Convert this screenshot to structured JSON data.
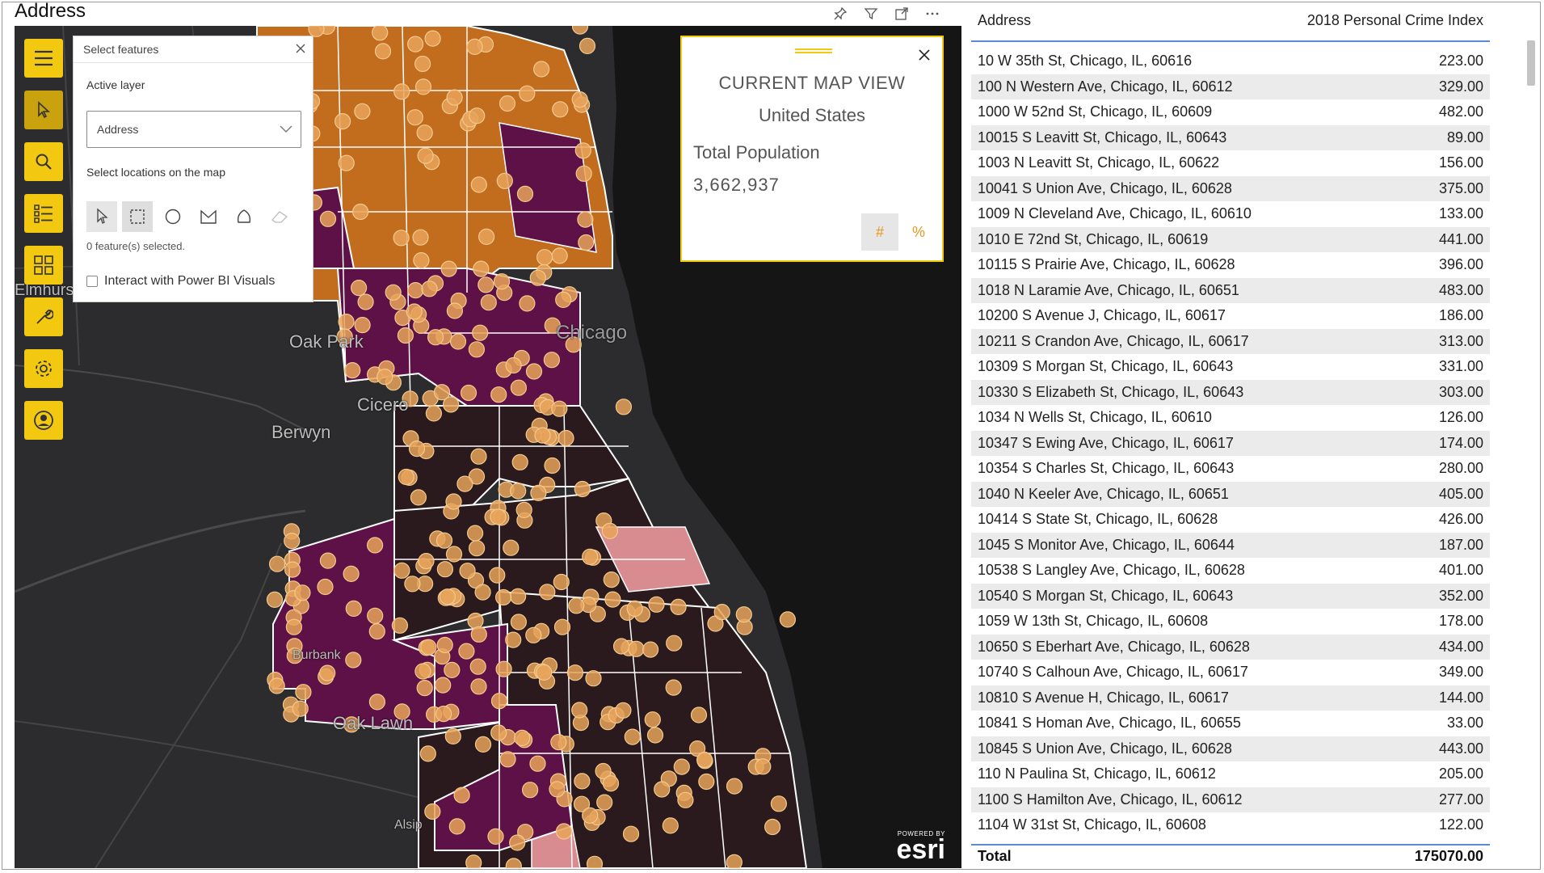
{
  "visual": {
    "title": "Address",
    "header_icons": [
      "pin-icon",
      "filter-icon",
      "focus-mode-icon",
      "more-options-icon"
    ]
  },
  "map": {
    "places": [
      {
        "name": "Oak Park"
      },
      {
        "name": "Chicago"
      },
      {
        "name": "Cicero"
      },
      {
        "name": "Berwyn"
      },
      {
        "name": "Burbank"
      },
      {
        "name": "Oak Lawn"
      },
      {
        "name": "Alsip"
      },
      {
        "name": "Elmhurst"
      }
    ],
    "toolbar": [
      "menu-icon",
      "select-icon",
      "search-icon",
      "layers-list-icon",
      "infographic-icon",
      "tools-icon",
      "settings-icon",
      "account-icon"
    ],
    "select_panel": {
      "title": "Select features",
      "active_layer_label": "Active layer",
      "active_layer_value": "Address",
      "select_label": "Select locations on the map",
      "tools": [
        "pointer-select-icon",
        "rectangle-select-icon",
        "circle-select-icon",
        "polygon-select-icon",
        "lasso-select-icon",
        "eraser-icon"
      ],
      "count_text": "0 feature(s) selected.",
      "interact_label": "Interact with Power BI Visuals",
      "interact_checked": false
    },
    "infocard": {
      "title": "CURRENT MAP VIEW",
      "subtitle": "United States",
      "metric_label": "Total Population",
      "metric_value": "3,662,937",
      "btn_count": "#",
      "btn_percent": "%"
    },
    "attribution": {
      "powered": "POWERED BY",
      "brand": "esri"
    },
    "colors": {
      "orange": "#c7701f",
      "purple": "#5e1146",
      "dark": "#2a1a1d",
      "pink": "#d98c8f",
      "dot": "#e8a35a",
      "accent": "#f2c811"
    }
  },
  "table": {
    "columns": [
      "Address",
      "2018 Personal Crime Index"
    ],
    "rows": [
      [
        "10 W 35th St, Chicago, IL, 60616",
        "223.00"
      ],
      [
        "100 N Western Ave, Chicago, IL, 60612",
        "329.00"
      ],
      [
        "1000 W 52nd St, Chicago, IL, 60609",
        "482.00"
      ],
      [
        "10015 S Leavitt St, Chicago, IL, 60643",
        "89.00"
      ],
      [
        "1003 N Leavitt St, Chicago, IL, 60622",
        "156.00"
      ],
      [
        "10041 S Union Ave, Chicago, IL, 60628",
        "375.00"
      ],
      [
        "1009 N Cleveland Ave, Chicago, IL, 60610",
        "133.00"
      ],
      [
        "1010 E 72nd St, Chicago, IL, 60619",
        "441.00"
      ],
      [
        "10115 S Prairie Ave, Chicago, IL, 60628",
        "396.00"
      ],
      [
        "1018 N Laramie Ave, Chicago, IL, 60651",
        "483.00"
      ],
      [
        "10200 S Avenue J, Chicago, IL, 60617",
        "186.00"
      ],
      [
        "10211 S Crandon Ave, Chicago, IL, 60617",
        "313.00"
      ],
      [
        "10309 S Morgan St, Chicago, IL, 60643",
        "331.00"
      ],
      [
        "10330 S Elizabeth St, Chicago, IL, 60643",
        "303.00"
      ],
      [
        "1034 N Wells St, Chicago, IL, 60610",
        "126.00"
      ],
      [
        "10347 S Ewing Ave, Chicago, IL, 60617",
        "174.00"
      ],
      [
        "10354 S Charles St, Chicago, IL, 60643",
        "280.00"
      ],
      [
        "1040 N Keeler Ave, Chicago, IL, 60651",
        "405.00"
      ],
      [
        "10414 S State St, Chicago, IL, 60628",
        "426.00"
      ],
      [
        "1045 S Monitor Ave, Chicago, IL, 60644",
        "187.00"
      ],
      [
        "10538 S Langley Ave, Chicago, IL, 60628",
        "401.00"
      ],
      [
        "10540 S Morgan St, Chicago, IL, 60643",
        "352.00"
      ],
      [
        "1059 W 13th St, Chicago, IL, 60608",
        "178.00"
      ],
      [
        "10650 S Eberhart Ave, Chicago, IL, 60628",
        "434.00"
      ],
      [
        "10740 S Calhoun Ave, Chicago, IL, 60617",
        "349.00"
      ],
      [
        "10810 S Avenue H, Chicago, IL, 60617",
        "144.00"
      ],
      [
        "10841 S Homan Ave, Chicago, IL, 60655",
        "33.00"
      ],
      [
        "10845 S Union Ave, Chicago, IL, 60628",
        "443.00"
      ],
      [
        "110 N Paulina St, Chicago, IL, 60612",
        "205.00"
      ],
      [
        "1100 S Hamilton Ave, Chicago, IL, 60612",
        "277.00"
      ],
      [
        "1104 W 31st St, Chicago, IL, 60608",
        "122.00"
      ]
    ],
    "total_label": "Total",
    "total_value": "175070.00"
  }
}
